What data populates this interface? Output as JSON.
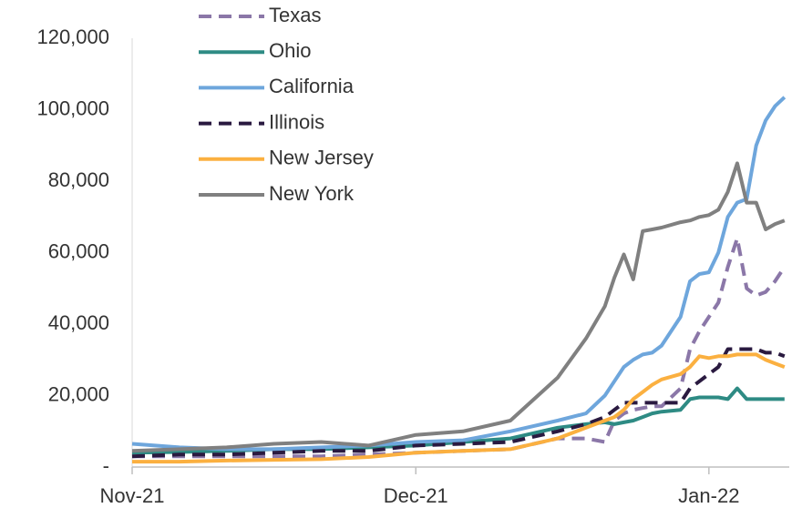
{
  "chart_data": {
    "type": "line",
    "x": [
      0,
      5,
      10,
      15,
      20,
      25,
      30,
      35,
      40,
      45,
      48,
      50,
      51,
      52,
      53,
      54,
      55,
      56,
      58,
      59,
      60,
      61,
      62,
      63,
      64,
      65,
      66,
      67,
      68,
      69
    ],
    "xlim": [
      0,
      69.5
    ],
    "xticks": [
      {
        "value": 0,
        "label": "Nov-21"
      },
      {
        "value": 30,
        "label": "Dec-21"
      },
      {
        "value": 61,
        "label": "Jan-22"
      }
    ],
    "ylim": [
      0,
      120000
    ],
    "yticks": [
      {
        "value": 0,
        "label": "-"
      },
      {
        "value": 20000,
        "label": "20,000"
      },
      {
        "value": 40000,
        "label": "40,000"
      },
      {
        "value": 60000,
        "label": "60,000"
      },
      {
        "value": 80000,
        "label": "80,000"
      },
      {
        "value": 100000,
        "label": "100,000"
      },
      {
        "value": 120000,
        "label": "120,000"
      }
    ],
    "legend": "top-left",
    "series": [
      {
        "name": "Texas",
        "color": "#8b77a8",
        "dashed": true,
        "values": [
          3000,
          3000,
          3000,
          3000,
          3000,
          3500,
          4000,
          4500,
          5000,
          8000,
          8000,
          7000,
          13000,
          15000,
          16000,
          16500,
          17000,
          17000,
          22000,
          33000,
          38000,
          42000,
          46000,
          56000,
          64000,
          50000,
          48000,
          49000,
          52000,
          56000
        ]
      },
      {
        "name": "Ohio",
        "color": "#2e8b84",
        "dashed": false,
        "values": [
          4000,
          4200,
          4500,
          5000,
          5000,
          5500,
          6000,
          7000,
          8000,
          11000,
          12000,
          12500,
          12000,
          12500,
          13000,
          14000,
          15000,
          15500,
          16000,
          19000,
          19500,
          19500,
          19500,
          19000,
          22000,
          19000,
          19000,
          19000,
          19000,
          19000
        ]
      },
      {
        "name": "California",
        "color": "#6ea6dc",
        "dashed": false,
        "values": [
          6500,
          5500,
          5000,
          5000,
          5500,
          6000,
          7000,
          7500,
          10000,
          13000,
          15000,
          20000,
          24000,
          28000,
          30000,
          31500,
          32000,
          34000,
          42000,
          52000,
          54000,
          54500,
          60000,
          70000,
          74000,
          75000,
          90000,
          97000,
          101000,
          103500
        ]
      },
      {
        "name": "Illinois",
        "color": "#2a1a40",
        "dashed": true,
        "values": [
          3000,
          3500,
          3500,
          4000,
          4500,
          4500,
          6000,
          6500,
          7000,
          10000,
          12000,
          14000,
          16000,
          18000,
          18000,
          18000,
          18000,
          18000,
          18000,
          22000,
          24000,
          26000,
          28000,
          33000,
          33000,
          33000,
          33000,
          32000,
          32000,
          31000
        ]
      },
      {
        "name": "New Jersey",
        "color": "#fbb040",
        "dashed": false,
        "values": [
          1500,
          1500,
          1800,
          2000,
          2200,
          2800,
          4000,
          4500,
          5000,
          8000,
          11000,
          13000,
          14000,
          16000,
          19000,
          21000,
          23000,
          24500,
          26000,
          28000,
          31000,
          30500,
          31000,
          31000,
          31500,
          31500,
          31500,
          30000,
          29000,
          28000
        ]
      },
      {
        "name": "New York",
        "color": "#808080",
        "dashed": false,
        "values": [
          4500,
          5000,
          5500,
          6500,
          7000,
          6000,
          9000,
          10000,
          13000,
          25000,
          36000,
          45000,
          53000,
          59500,
          52500,
          66000,
          66500,
          67000,
          68500,
          69000,
          70000,
          70500,
          72000,
          77000,
          85000,
          74000,
          74000,
          66500,
          68000,
          69000
        ]
      }
    ]
  }
}
